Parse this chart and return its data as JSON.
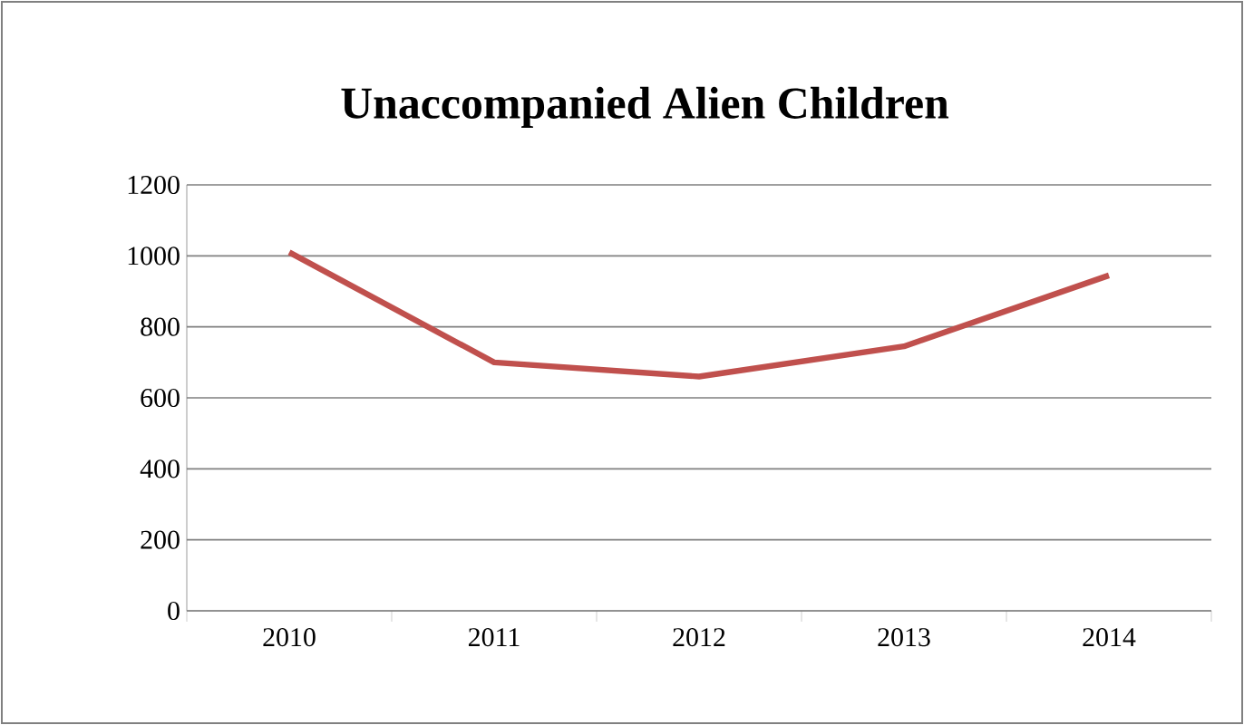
{
  "chart_data": {
    "type": "line",
    "title": "Unaccompanied Alien Children",
    "categories": [
      "2010",
      "2011",
      "2012",
      "2013",
      "2014"
    ],
    "series": [
      {
        "color": "#c0504d",
        "values": [
          1010,
          700,
          660,
          745,
          945
        ]
      }
    ],
    "ylim": [
      0,
      1200
    ],
    "yticks": [
      0,
      200,
      400,
      600,
      800,
      1000,
      1200
    ],
    "grid": "y",
    "marker": "none",
    "line_style": "solid",
    "legend": false
  }
}
